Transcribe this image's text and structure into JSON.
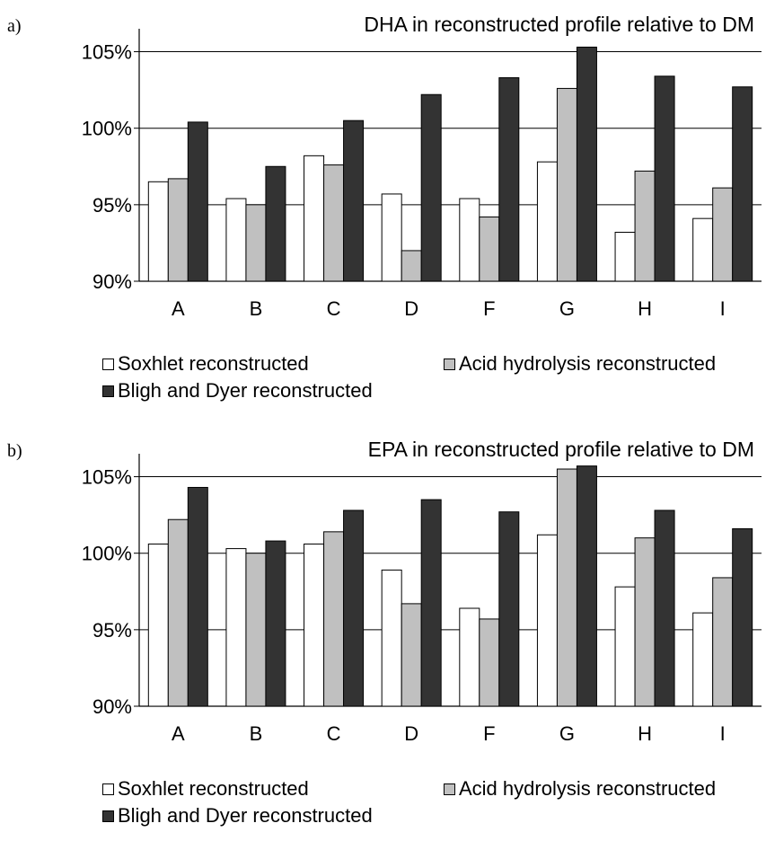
{
  "legend_labels": [
    "Soxhlet reconstructed",
    "Acid hydrolysis reconstructed",
    "Bligh and Dyer reconstructed"
  ],
  "colors": {
    "soxhlet": "#ffffff",
    "acid": "#c0c0c0",
    "bligh": "#333333"
  },
  "chart_data": [
    {
      "panel_label": "a)",
      "type": "bar",
      "title": "DHA in reconstructed profile relative to DM",
      "categories": [
        "A",
        "B",
        "C",
        "D",
        "F",
        "G",
        "H",
        "I"
      ],
      "ylim": [
        90,
        106.5
      ],
      "yticks": [
        90,
        95,
        100,
        105
      ],
      "ytick_labels": [
        "90%",
        "95%",
        "100%",
        "105%"
      ],
      "grid": true,
      "legend_position": "bottom",
      "series": [
        {
          "name": "Soxhlet reconstructed",
          "values": [
            96.5,
            95.4,
            98.2,
            95.7,
            95.4,
            97.8,
            93.2,
            94.1
          ]
        },
        {
          "name": "Acid hydrolysis reconstructed",
          "values": [
            96.7,
            95.0,
            97.6,
            92.0,
            94.2,
            102.6,
            97.2,
            96.1
          ]
        },
        {
          "name": "Bligh and Dyer reconstructed",
          "values": [
            100.4,
            97.5,
            100.5,
            102.2,
            103.3,
            105.3,
            103.4,
            102.7
          ]
        }
      ]
    },
    {
      "panel_label": "b)",
      "type": "bar",
      "title": "EPA in reconstructed profile relative to DM",
      "categories": [
        "A",
        "B",
        "C",
        "D",
        "F",
        "G",
        "H",
        "I"
      ],
      "ylim": [
        90,
        106.5
      ],
      "yticks": [
        90,
        95,
        100,
        105
      ],
      "ytick_labels": [
        "90%",
        "95%",
        "100%",
        "105%"
      ],
      "grid": true,
      "legend_position": "bottom",
      "series": [
        {
          "name": "Soxhlet reconstructed",
          "values": [
            100.6,
            100.3,
            100.6,
            98.9,
            96.4,
            101.2,
            97.8,
            96.1
          ]
        },
        {
          "name": "Acid hydrolysis reconstructed",
          "values": [
            102.2,
            100.0,
            101.4,
            96.7,
            95.7,
            105.5,
            101.0,
            98.4
          ]
        },
        {
          "name": "Bligh and Dyer reconstructed",
          "values": [
            104.3,
            100.8,
            102.8,
            103.5,
            102.7,
            105.7,
            102.8,
            101.6
          ]
        }
      ]
    }
  ]
}
